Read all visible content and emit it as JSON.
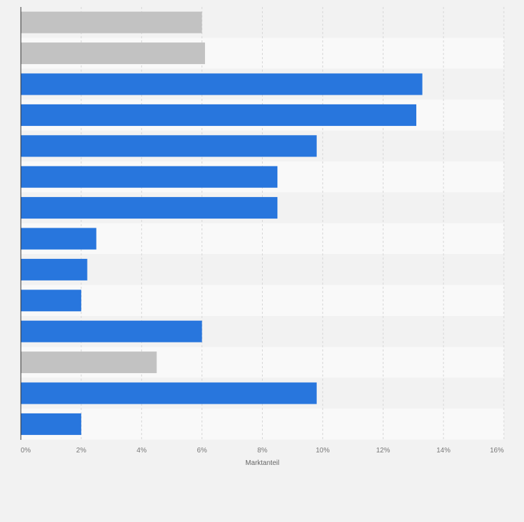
{
  "chart_data": {
    "type": "bar",
    "orientation": "horizontal",
    "xlabel": "Marktanteil",
    "xlim": [
      0,
      16
    ],
    "xticks": [
      "0%",
      "2%",
      "4%",
      "6%",
      "8%",
      "10%",
      "12%",
      "14%",
      "16%"
    ],
    "grid": true,
    "colors": {
      "highlight": "#2876dd",
      "muted": "#c2c2c2",
      "band_light": "#f9f9f9",
      "band_dark": "#f2f2f2"
    },
    "bars": [
      {
        "value": 6.0,
        "color": "muted"
      },
      {
        "value": 6.1,
        "color": "muted"
      },
      {
        "value": 13.3,
        "color": "highlight"
      },
      {
        "value": 13.1,
        "color": "highlight"
      },
      {
        "value": 9.8,
        "color": "highlight"
      },
      {
        "value": 8.5,
        "color": "highlight"
      },
      {
        "value": 8.5,
        "color": "highlight"
      },
      {
        "value": 2.5,
        "color": "highlight"
      },
      {
        "value": 2.2,
        "color": "highlight"
      },
      {
        "value": 2.0,
        "color": "highlight"
      },
      {
        "value": 6.0,
        "color": "highlight"
      },
      {
        "value": 4.5,
        "color": "muted"
      },
      {
        "value": 9.8,
        "color": "highlight"
      },
      {
        "value": 2.0,
        "color": "highlight"
      }
    ]
  }
}
